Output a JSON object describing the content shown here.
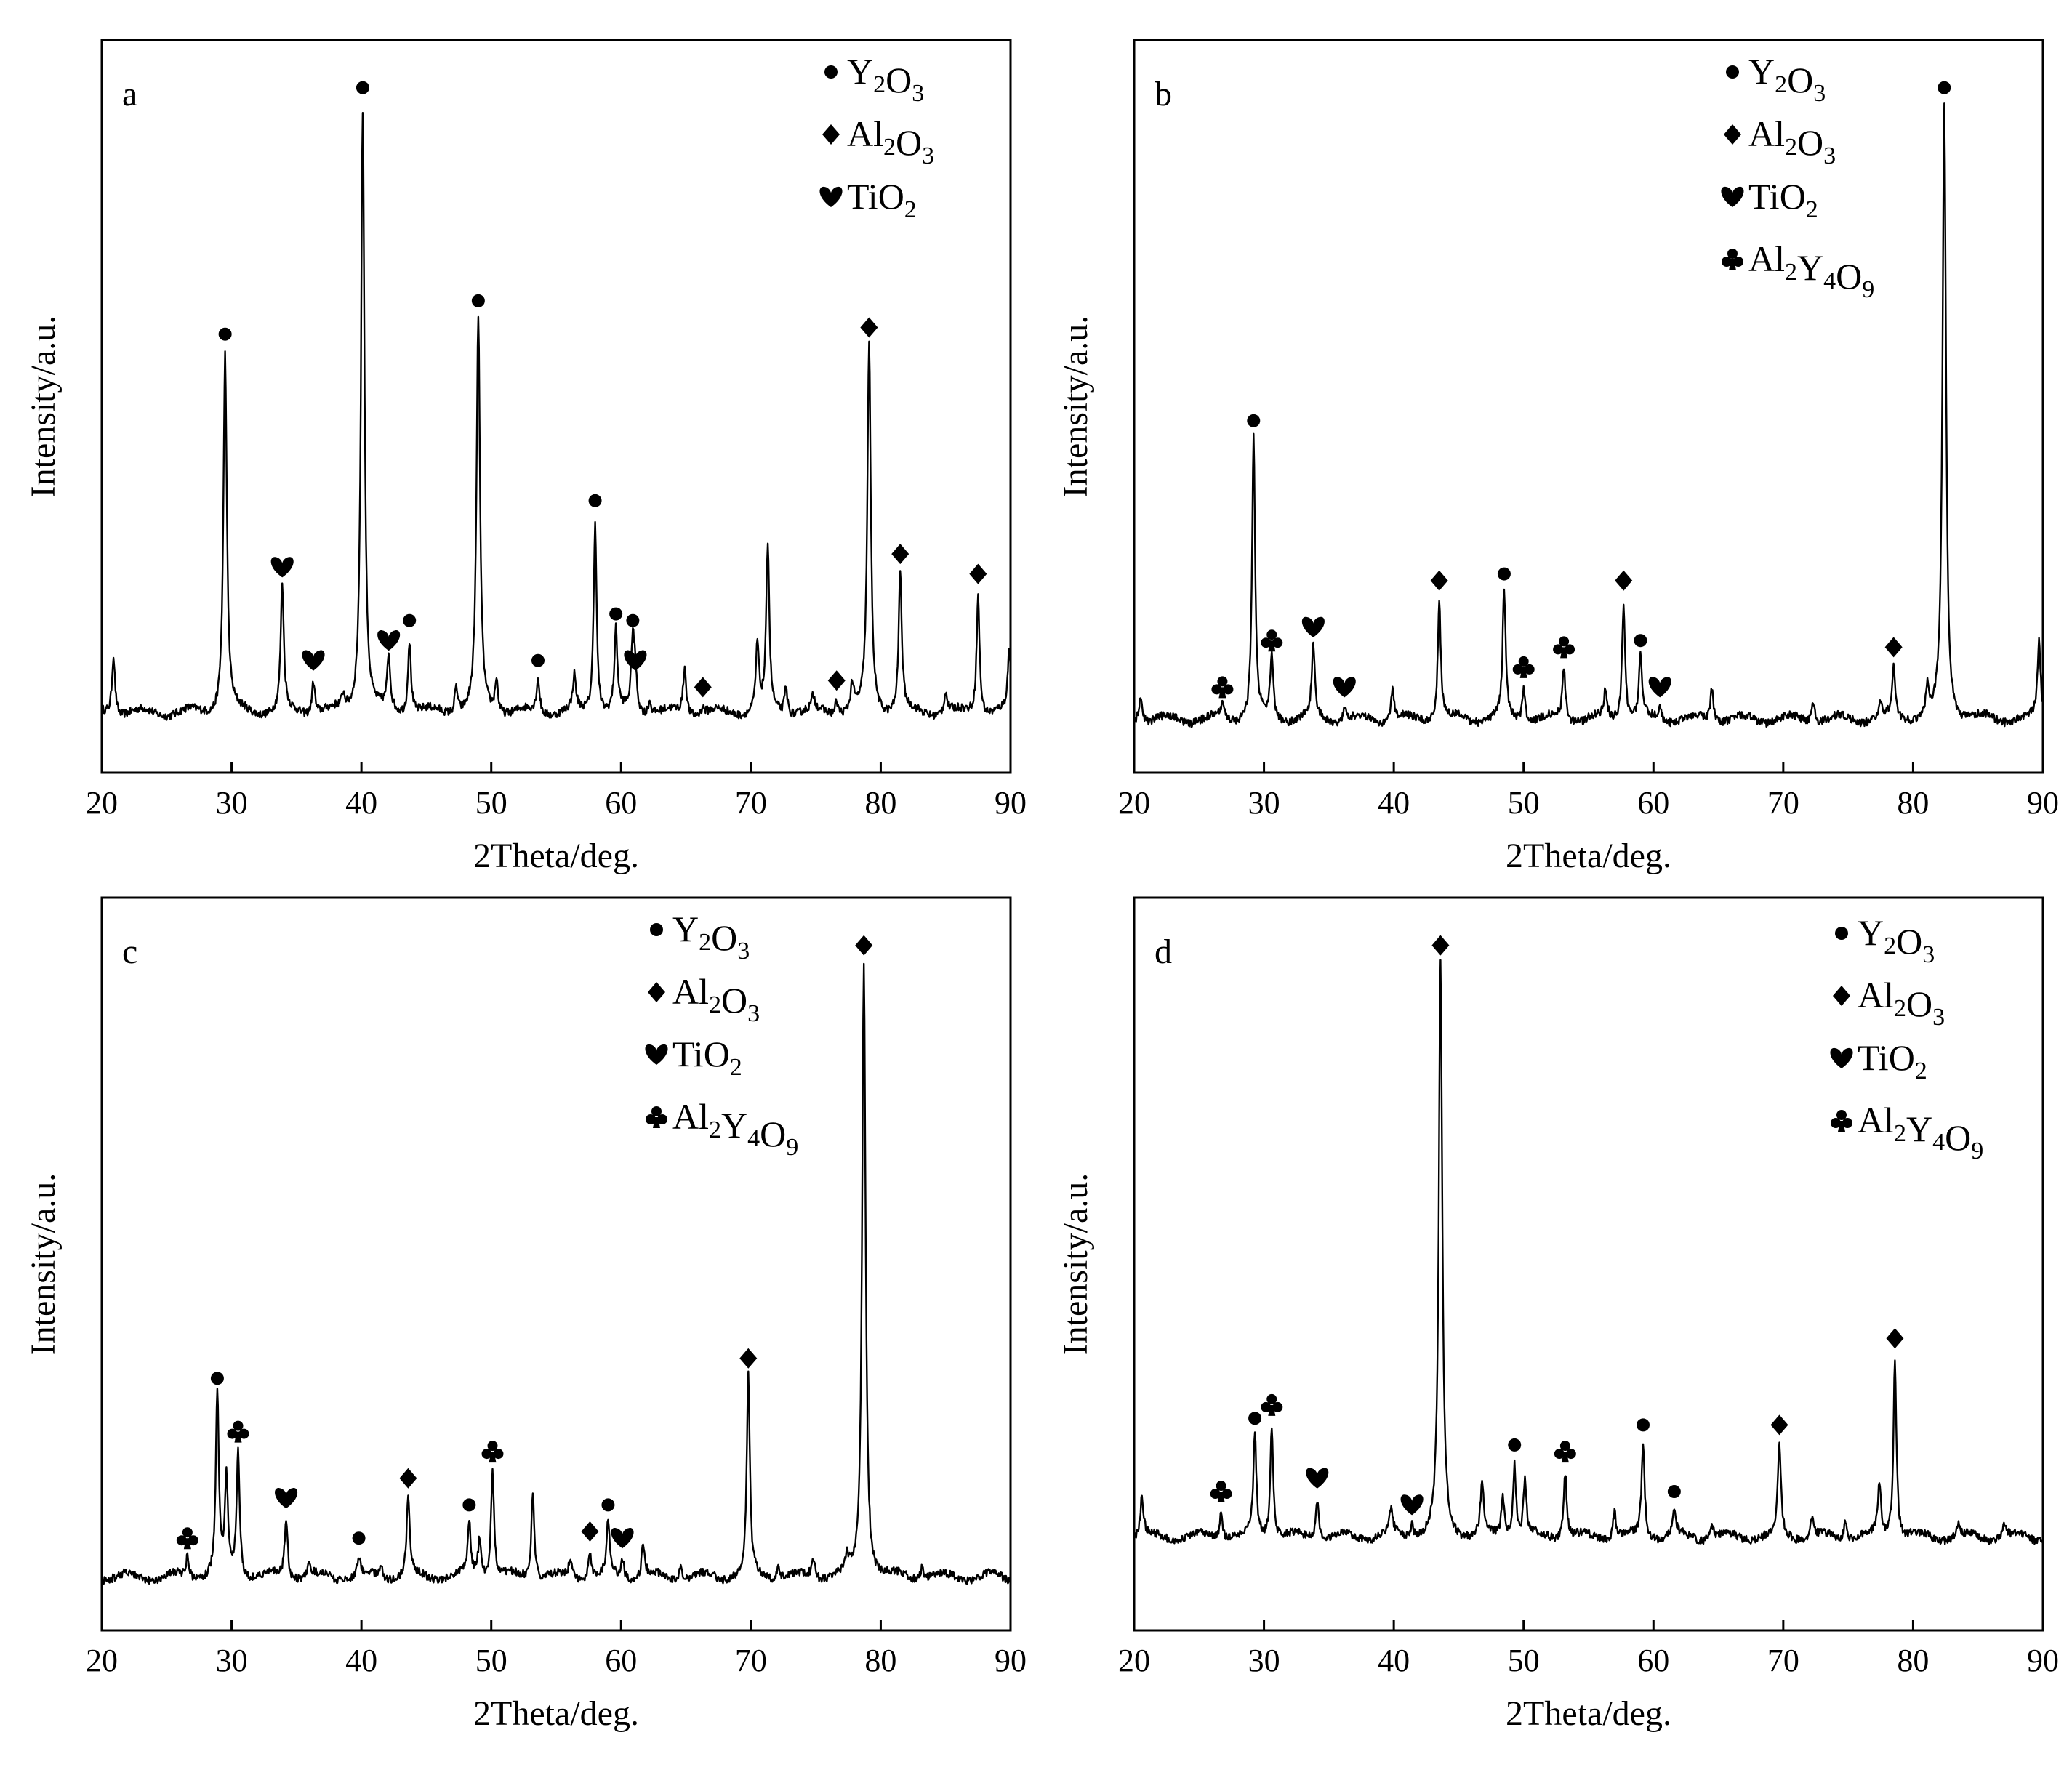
{
  "figure": {
    "phases": {
      "Y2O3": {
        "symbol": "●",
        "parts": [
          [
            "Y",
            "2"
          ],
          [
            "O",
            "3"
          ]
        ]
      },
      "Al2O3": {
        "symbol": "◆",
        "parts": [
          [
            "Al",
            "2"
          ],
          [
            "O",
            "3"
          ]
        ]
      },
      "TiO2": {
        "symbol": "♥",
        "parts": [
          [
            "Ti",
            ""
          ],
          [
            "O",
            "2"
          ]
        ]
      },
      "Al2Y4O9": {
        "symbol": "♣",
        "parts": [
          [
            "Al",
            "2"
          ],
          [
            "Y",
            "4"
          ],
          [
            "O",
            "9"
          ]
        ]
      }
    }
  },
  "chart_data": [
    {
      "type": "line",
      "panel": "a",
      "xlabel": "2Theta/deg.",
      "ylabel": "Intensity/a.u.",
      "xlim": [
        20,
        90
      ],
      "ylim": [
        0,
        1.1
      ],
      "xticks": [
        20,
        30,
        40,
        50,
        60,
        70,
        80,
        90
      ],
      "baseline": 0.09,
      "legend": [
        "Y2O3",
        "Al2O3",
        "TiO2"
      ],
      "peaks": [
        {
          "x": 20.9,
          "y": 0.18
        },
        {
          "x": 29.5,
          "y": 0.63,
          "phase": "Y2O3"
        },
        {
          "x": 33.9,
          "y": 0.28,
          "phase": "TiO2"
        },
        {
          "x": 36.3,
          "y": 0.14,
          "phase": "TiO2"
        },
        {
          "x": 38.6,
          "y": 0.11
        },
        {
          "x": 40.1,
          "y": 1.0,
          "phase": "Y2O3"
        },
        {
          "x": 42.1,
          "y": 0.17,
          "phase": "TiO2"
        },
        {
          "x": 43.7,
          "y": 0.2,
          "phase": "Y2O3"
        },
        {
          "x": 47.3,
          "y": 0.13
        },
        {
          "x": 49.0,
          "y": 0.68,
          "phase": "Y2O3"
        },
        {
          "x": 50.4,
          "y": 0.14
        },
        {
          "x": 53.6,
          "y": 0.14,
          "phase": "Y2O3"
        },
        {
          "x": 56.4,
          "y": 0.14
        },
        {
          "x": 58.0,
          "y": 0.38,
          "phase": "Y2O3"
        },
        {
          "x": 59.6,
          "y": 0.21,
          "phase": "Y2O3"
        },
        {
          "x": 60.9,
          "y": 0.2,
          "phase": "Y2O3"
        },
        {
          "x": 61.1,
          "y": 0.14,
          "phase": "TiO2"
        },
        {
          "x": 62.2,
          "y": 0.11
        },
        {
          "x": 64.9,
          "y": 0.16
        },
        {
          "x": 66.3,
          "y": 0.1,
          "phase": "Al2O3"
        },
        {
          "x": 70.5,
          "y": 0.19
        },
        {
          "x": 71.3,
          "y": 0.34
        },
        {
          "x": 72.7,
          "y": 0.13
        },
        {
          "x": 74.8,
          "y": 0.11
        },
        {
          "x": 76.6,
          "y": 0.11,
          "phase": "Al2O3"
        },
        {
          "x": 77.8,
          "y": 0.13
        },
        {
          "x": 79.1,
          "y": 0.64,
          "phase": "Al2O3"
        },
        {
          "x": 81.5,
          "y": 0.3,
          "phase": "Al2O3"
        },
        {
          "x": 85.0,
          "y": 0.12
        },
        {
          "x": 87.5,
          "y": 0.27,
          "phase": "Al2O3"
        },
        {
          "x": 89.9,
          "y": 0.18
        }
      ]
    },
    {
      "type": "line",
      "panel": "b",
      "xlabel": "2Theta/deg.",
      "ylabel": "Intensity/a.u.",
      "xlim": [
        20,
        90
      ],
      "ylim": [
        0,
        1.1
      ],
      "xticks": [
        20,
        30,
        40,
        50,
        60,
        70,
        80,
        90
      ],
      "baseline": 0.08,
      "legend": [
        "Y2O3",
        "Al2O3",
        "TiO2",
        "Al2Y4O9"
      ],
      "peaks": [
        {
          "x": 20.5,
          "y": 0.12
        },
        {
          "x": 26.8,
          "y": 0.1,
          "phase": "Al2Y4O9"
        },
        {
          "x": 29.2,
          "y": 0.5,
          "phase": "Y2O3"
        },
        {
          "x": 30.6,
          "y": 0.17,
          "phase": "Al2Y4O9"
        },
        {
          "x": 33.8,
          "y": 0.19,
          "phase": "TiO2"
        },
        {
          "x": 36.2,
          "y": 0.1,
          "phase": "TiO2"
        },
        {
          "x": 39.9,
          "y": 0.13
        },
        {
          "x": 43.5,
          "y": 0.26,
          "phase": "Al2O3"
        },
        {
          "x": 48.5,
          "y": 0.27,
          "phase": "Y2O3"
        },
        {
          "x": 50.0,
          "y": 0.13,
          "phase": "Al2Y4O9"
        },
        {
          "x": 53.1,
          "y": 0.16,
          "phase": "Al2Y4O9"
        },
        {
          "x": 56.3,
          "y": 0.12
        },
        {
          "x": 57.7,
          "y": 0.26,
          "phase": "Al2O3"
        },
        {
          "x": 59.0,
          "y": 0.17,
          "phase": "Y2O3"
        },
        {
          "x": 60.5,
          "y": 0.1,
          "phase": "TiO2"
        },
        {
          "x": 64.5,
          "y": 0.13
        },
        {
          "x": 72.3,
          "y": 0.11
        },
        {
          "x": 77.5,
          "y": 0.1
        },
        {
          "x": 78.5,
          "y": 0.16,
          "phase": "Al2O3"
        },
        {
          "x": 81.1,
          "y": 0.12
        },
        {
          "x": 82.4,
          "y": 1.0,
          "phase": "Y2O3"
        },
        {
          "x": 89.7,
          "y": 0.2
        }
      ]
    },
    {
      "type": "line",
      "panel": "c",
      "xlabel": "2Theta/deg.",
      "ylabel": "Intensity/a.u.",
      "xlim": [
        20,
        90
      ],
      "ylim": [
        0,
        1.1
      ],
      "xticks": [
        20,
        30,
        40,
        50,
        60,
        70,
        80,
        90
      ],
      "baseline": 0.08,
      "legend": [
        "Y2O3",
        "Al2O3",
        "TiO2",
        "Al2Y4O9"
      ],
      "peaks": [
        {
          "x": 26.6,
          "y": 0.11,
          "phase": "Al2Y4O9"
        },
        {
          "x": 28.9,
          "y": 0.35,
          "phase": "Y2O3"
        },
        {
          "x": 29.6,
          "y": 0.22
        },
        {
          "x": 30.5,
          "y": 0.27,
          "phase": "Al2Y4O9"
        },
        {
          "x": 34.2,
          "y": 0.17,
          "phase": "TiO2"
        },
        {
          "x": 36.0,
          "y": 0.1
        },
        {
          "x": 39.8,
          "y": 0.11,
          "phase": "Y2O3"
        },
        {
          "x": 41.5,
          "y": 0.1
        },
        {
          "x": 43.6,
          "y": 0.2,
          "phase": "Al2O3"
        },
        {
          "x": 48.3,
          "y": 0.16,
          "phase": "Y2O3"
        },
        {
          "x": 49.1,
          "y": 0.14
        },
        {
          "x": 50.1,
          "y": 0.24,
          "phase": "Al2Y4O9"
        },
        {
          "x": 53.2,
          "y": 0.21
        },
        {
          "x": 56.1,
          "y": 0.11
        },
        {
          "x": 57.6,
          "y": 0.12,
          "phase": "Al2O3"
        },
        {
          "x": 59.0,
          "y": 0.16,
          "phase": "Y2O3"
        },
        {
          "x": 60.1,
          "y": 0.11,
          "phase": "TiO2"
        },
        {
          "x": 61.7,
          "y": 0.13
        },
        {
          "x": 64.6,
          "y": 0.1
        },
        {
          "x": 69.8,
          "y": 0.38,
          "phase": "Al2O3"
        },
        {
          "x": 72.1,
          "y": 0.1
        },
        {
          "x": 74.8,
          "y": 0.11
        },
        {
          "x": 77.4,
          "y": 0.1
        },
        {
          "x": 78.7,
          "y": 1.0,
          "phase": "Al2O3"
        },
        {
          "x": 83.2,
          "y": 0.1
        }
      ]
    },
    {
      "type": "line",
      "panel": "d",
      "xlabel": "2Theta/deg.",
      "ylabel": "Intensity/a.u.",
      "xlim": [
        20,
        90
      ],
      "ylim": [
        0,
        1.1
      ],
      "xticks": [
        20,
        30,
        40,
        50,
        60,
        70,
        80,
        90
      ],
      "baseline": 0.14,
      "legend": [
        "Y2O3",
        "Al2O3",
        "TiO2",
        "Al2Y4O9"
      ],
      "peaks": [
        {
          "x": 20.6,
          "y": 0.2
        },
        {
          "x": 26.7,
          "y": 0.18,
          "phase": "Al2Y4O9"
        },
        {
          "x": 29.3,
          "y": 0.29,
          "phase": "Y2O3"
        },
        {
          "x": 30.6,
          "y": 0.31,
          "phase": "Al2Y4O9"
        },
        {
          "x": 34.1,
          "y": 0.2,
          "phase": "TiO2"
        },
        {
          "x": 39.8,
          "y": 0.18
        },
        {
          "x": 41.4,
          "y": 0.16,
          "phase": "TiO2"
        },
        {
          "x": 43.6,
          "y": 1.0,
          "phase": "Al2O3"
        },
        {
          "x": 46.8,
          "y": 0.22
        },
        {
          "x": 48.4,
          "y": 0.2
        },
        {
          "x": 49.3,
          "y": 0.25,
          "phase": "Y2O3"
        },
        {
          "x": 50.1,
          "y": 0.22
        },
        {
          "x": 53.2,
          "y": 0.24,
          "phase": "Al2Y4O9"
        },
        {
          "x": 57.0,
          "y": 0.18
        },
        {
          "x": 59.2,
          "y": 0.28,
          "phase": "Y2O3"
        },
        {
          "x": 61.6,
          "y": 0.18,
          "phase": "Y2O3"
        },
        {
          "x": 64.5,
          "y": 0.16
        },
        {
          "x": 69.7,
          "y": 0.28,
          "phase": "Al2O3"
        },
        {
          "x": 72.2,
          "y": 0.17
        },
        {
          "x": 74.8,
          "y": 0.17
        },
        {
          "x": 77.4,
          "y": 0.22
        },
        {
          "x": 78.6,
          "y": 0.41,
          "phase": "Al2O3"
        },
        {
          "x": 83.5,
          "y": 0.16
        },
        {
          "x": 87.0,
          "y": 0.16
        }
      ]
    }
  ]
}
